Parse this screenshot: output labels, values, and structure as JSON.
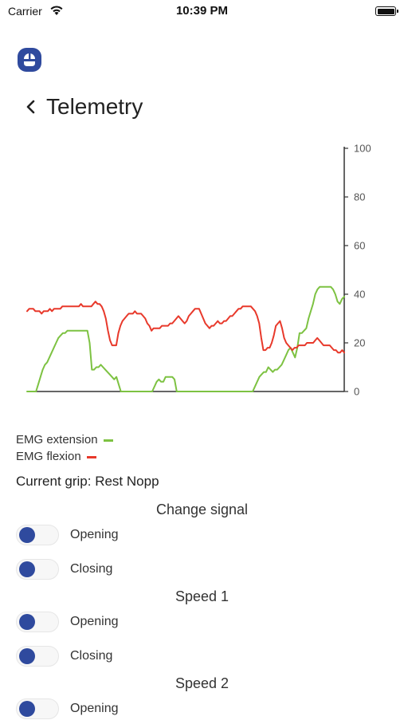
{
  "status_bar": {
    "carrier": "Carrier",
    "time": "10:39 PM"
  },
  "header": {
    "title": "Telemetry"
  },
  "icons": {
    "logo": "hand-logo-icon",
    "back": "chevron-left-icon",
    "wifi": "wifi-icon",
    "battery": "battery-icon"
  },
  "colors": {
    "accent": "#2f4a9e",
    "extension": "#7dc242",
    "flexion": "#e8392b"
  },
  "chart_data": {
    "type": "line",
    "ylim": [
      0,
      100
    ],
    "yticks": [
      "0",
      "20",
      "40",
      "60",
      "80",
      "100"
    ],
    "axis_side": "right",
    "grid": false,
    "series": [
      {
        "name": "EMG extension",
        "color": "#7dc242",
        "values": [
          0,
          0,
          0,
          0,
          0,
          3,
          6,
          9,
          11,
          12,
          14,
          16,
          18,
          20,
          22,
          23,
          24,
          24,
          25,
          25,
          25,
          25,
          25,
          25,
          25,
          25,
          25,
          25,
          20,
          9,
          9,
          10,
          10,
          11,
          10,
          9,
          8,
          7,
          6,
          5,
          6,
          3,
          0,
          0,
          0,
          0,
          0,
          0,
          0,
          0,
          0,
          0,
          0,
          0,
          0,
          0,
          0,
          2,
          4,
          5,
          4,
          4,
          6,
          6,
          6,
          6,
          5,
          0,
          0,
          0,
          0,
          0,
          0,
          0,
          0,
          0,
          0,
          0,
          0,
          0,
          0,
          0,
          0,
          0,
          0,
          0,
          0,
          0,
          0,
          0,
          0,
          0,
          0,
          0,
          0,
          0,
          0,
          0,
          0,
          0,
          0,
          0,
          2,
          4,
          6,
          7,
          8,
          8,
          10,
          9,
          8,
          9,
          9,
          10,
          11,
          13,
          15,
          17,
          18,
          16,
          14,
          18,
          24,
          24,
          25,
          26,
          30,
          33,
          36,
          40,
          42,
          43,
          43,
          43,
          43,
          43,
          43,
          42,
          40,
          37,
          36,
          38,
          39
        ]
      },
      {
        "name": "EMG flexion",
        "color": "#e8392b",
        "values": [
          33,
          34,
          34,
          34,
          33,
          33,
          33,
          32,
          33,
          33,
          33,
          34,
          33,
          34,
          34,
          34,
          34,
          35,
          35,
          35,
          35,
          35,
          35,
          35,
          35,
          35,
          36,
          35,
          35,
          35,
          35,
          35,
          36,
          37,
          36,
          36,
          35,
          33,
          30,
          25,
          21,
          19,
          19,
          19,
          24,
          27,
          29,
          30,
          31,
          32,
          32,
          32,
          33,
          32,
          32,
          32,
          31,
          30,
          28,
          27,
          25,
          26,
          26,
          26,
          26,
          27,
          27,
          27,
          27,
          28,
          28,
          29,
          30,
          31,
          30,
          29,
          28,
          29,
          31,
          32,
          33,
          34,
          34,
          34,
          32,
          30,
          28,
          27,
          26,
          27,
          27,
          28,
          29,
          28,
          28,
          29,
          29,
          30,
          31,
          31,
          32,
          33,
          34,
          34,
          35,
          35,
          35,
          35,
          35,
          34,
          33,
          31,
          28,
          22,
          17,
          17,
          18,
          18,
          20,
          23,
          27,
          28,
          29,
          26,
          22,
          20,
          19,
          18,
          17,
          18,
          18,
          19,
          19,
          19,
          19,
          20,
          20,
          20,
          20,
          21,
          22,
          21,
          20,
          19,
          19,
          19,
          19,
          18,
          17,
          17,
          16,
          16,
          17,
          16
        ]
      }
    ]
  },
  "legend": [
    {
      "label": "EMG extension",
      "color": "#7dc242"
    },
    {
      "label": "EMG flexion",
      "color": "#e8392b"
    }
  ],
  "current_grip": "Current grip: Rest Nopp",
  "sections": [
    {
      "title": "Change signal",
      "toggles": [
        {
          "label": "Opening",
          "on": false
        },
        {
          "label": "Closing",
          "on": false
        }
      ]
    },
    {
      "title": "Speed 1",
      "toggles": [
        {
          "label": "Opening",
          "on": false
        },
        {
          "label": "Closing",
          "on": false
        }
      ]
    },
    {
      "title": "Speed 2",
      "toggles": [
        {
          "label": "Opening",
          "on": false
        }
      ]
    }
  ]
}
